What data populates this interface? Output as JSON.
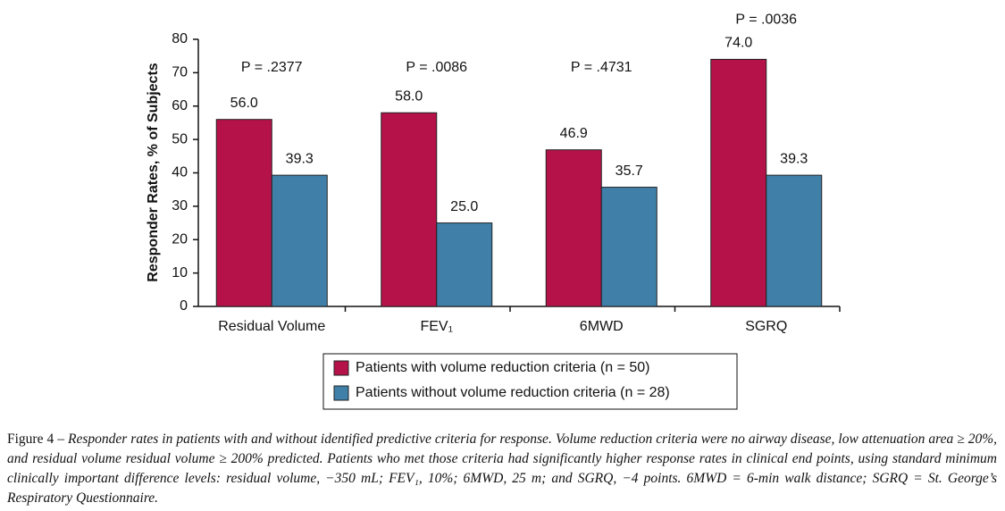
{
  "chart_data": {
    "type": "bar",
    "categories": [
      "Residual Volume",
      "FEV₁",
      "6MWD",
      "SGRQ"
    ],
    "series": [
      {
        "name": "Patients with volume reduction criteria (n = 50)",
        "color": "#b5124a",
        "values": [
          56,
          58,
          46.9,
          74
        ],
        "value_labels": [
          "56.0",
          "58.0",
          "46.9",
          "74.0"
        ]
      },
      {
        "name": "Patients without volume reduction criteria (n = 28)",
        "color": "#3f7fa8",
        "values": [
          39.3,
          25,
          35.7,
          39.3
        ],
        "value_labels": [
          "39.3",
          "25.0",
          "35.7",
          "39.3"
        ]
      }
    ],
    "annotations": [
      "P = .2377",
      "P = .0086",
      "P = .4731",
      "P = .0036"
    ],
    "ylabel": "Responder Rates, % of Subjects",
    "ylim": [
      0,
      80
    ],
    "yticks": [
      0,
      10,
      20,
      30,
      40,
      50,
      60,
      70,
      80
    ],
    "caption_label": "Figure 4 –",
    "caption": "Responder rates in patients with and without identified predictive criteria for response. Volume reduction criteria were no airway disease, low attenuation area ≥ 20%, and residual volume residual volume ≥ 200% predicted. Patients who met those criteria had significantly higher response rates in clinical end points, using standard minimum clinically important difference levels: residual volume, −350 mL; FEV₁, 10%; 6MWD, 25 m; and SGRQ, −4 points. 6MWD = 6-min walk distance; SGRQ = St. George’s Respiratory Questionnaire."
  }
}
